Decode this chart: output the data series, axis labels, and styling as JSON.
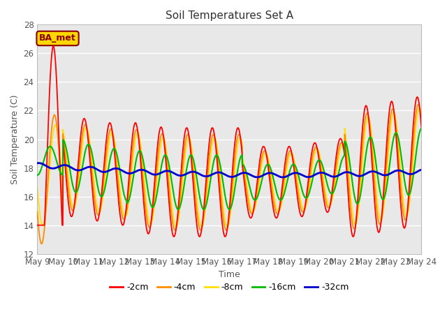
{
  "title": "Soil Temperatures Set A",
  "xlabel": "Time",
  "ylabel": "Soil Temperature (C)",
  "ylim": [
    12,
    28
  ],
  "xlim": [
    0,
    360
  ],
  "annotation": "BA_met",
  "annotation_color": "#8B0000",
  "annotation_bg": "#FFD700",
  "background_color": "#E8E8E8",
  "grid_color": "white",
  "series_colors": {
    "-2cm": "#FF0000",
    "-4cm": "#FF8C00",
    "-8cm": "#FFE000",
    "-16cm": "#00BB00",
    "-32cm": "#0000CD"
  },
  "x_ticks_labels": [
    "May 9",
    "May 10",
    "May 11",
    "May 12",
    "May 13",
    "May 14",
    "May 15",
    "May 16",
    "May 17",
    "May 18",
    "May 19",
    "May 20",
    "May 21",
    "May 22",
    "May 23",
    "May 24"
  ],
  "x_ticks_positions": [
    0,
    24,
    48,
    72,
    96,
    120,
    144,
    168,
    192,
    216,
    240,
    264,
    288,
    312,
    336,
    360
  ],
  "yticks": [
    12,
    14,
    16,
    18,
    20,
    22,
    24,
    26,
    28
  ]
}
